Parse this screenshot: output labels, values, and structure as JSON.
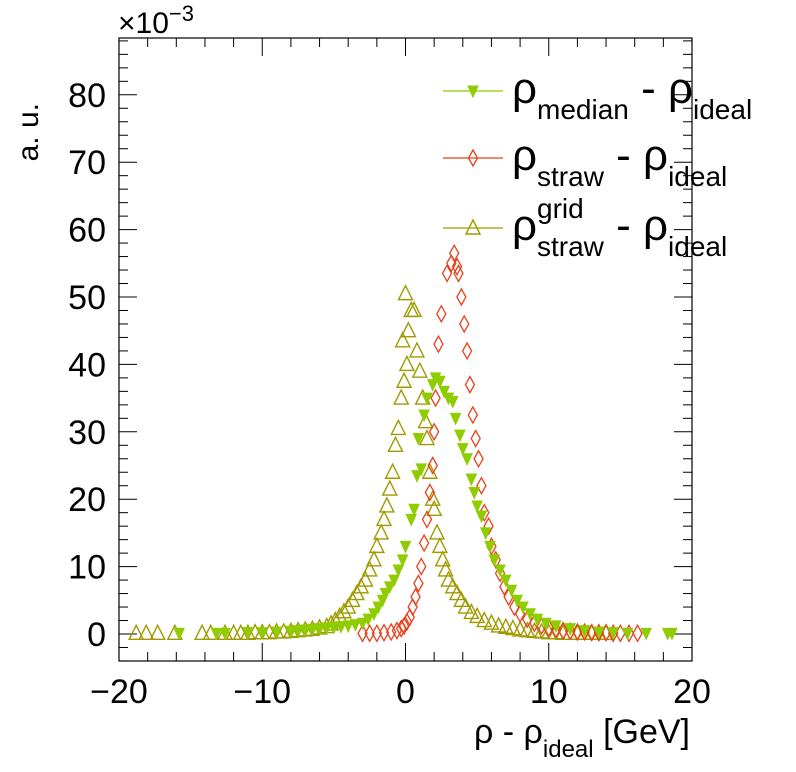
{
  "chart_data": {
    "type": "scatter",
    "title": "",
    "xlabel": {
      "main": "ρ - ρ",
      "sub": "ideal",
      "suffix": " [GeV]"
    },
    "ylabel": "a. u.",
    "y_multiplier": {
      "prefix": "×10",
      "exponent": "−3"
    },
    "xlim": [
      -20,
      20
    ],
    "ylim": [
      -4,
      89
    ],
    "x_ticks": [
      -20,
      -10,
      0,
      10,
      20
    ],
    "x_tick_labels": [
      "−20",
      "−10",
      "0",
      "10",
      "20"
    ],
    "y_ticks": [
      0,
      10,
      20,
      30,
      40,
      50,
      60,
      70,
      80
    ],
    "y_tick_labels": [
      "0",
      "10",
      "20",
      "30",
      "40",
      "50",
      "60",
      "70",
      "80"
    ],
    "grid": false,
    "legend_position": "top-right",
    "series": [
      {
        "name": "rho_median - rho_ideal",
        "legend": {
          "main": "ρ",
          "sub": "median",
          "sup": "",
          "tail": " - ρ",
          "tailsub": "ideal"
        },
        "marker": "triangle-down-filled",
        "color": "#8fcc00",
        "points": [
          [
            -15.8,
            0.1
          ],
          [
            -13.2,
            0.1
          ],
          [
            -12.6,
            0.1
          ],
          [
            -11,
            0.2
          ],
          [
            -10,
            0.2
          ],
          [
            -9,
            0.3
          ],
          [
            -8,
            0.4
          ],
          [
            -7.5,
            0.5
          ],
          [
            -7,
            0.6
          ],
          [
            -6.5,
            0.7
          ],
          [
            -6,
            0.8
          ],
          [
            -5.5,
            0.9
          ],
          [
            -5,
            1.0
          ],
          [
            -4.5,
            1.1
          ],
          [
            -4,
            1.2
          ],
          [
            -3.5,
            1.4
          ],
          [
            -3,
            1.6
          ],
          [
            -2.6,
            2.2
          ],
          [
            -2.2,
            3.0
          ],
          [
            -1.9,
            4.0
          ],
          [
            -1.6,
            5.0
          ],
          [
            -1.4,
            6.0
          ],
          [
            -1.1,
            7.0
          ],
          [
            -0.8,
            8.0
          ],
          [
            -0.5,
            9.5
          ],
          [
            -0.2,
            11.0
          ],
          [
            0,
            13.0
          ],
          [
            0.4,
            17.0
          ],
          [
            0.6,
            18.5
          ],
          [
            0.8,
            23.5
          ],
          [
            1.1,
            24.5
          ],
          [
            0.9,
            29.0
          ],
          [
            1.3,
            32.5
          ],
          [
            1.5,
            35.0
          ],
          [
            1.9,
            37.0
          ],
          [
            2.1,
            38.0
          ],
          [
            2.4,
            37.5
          ],
          [
            2.7,
            36.0
          ],
          [
            3.0,
            35.0
          ],
          [
            3.3,
            34.5
          ],
          [
            3.5,
            32.0
          ],
          [
            3.8,
            29.5
          ],
          [
            4.0,
            27.5
          ],
          [
            4.3,
            26.0
          ],
          [
            4.6,
            23.0
          ],
          [
            4.8,
            21.0
          ],
          [
            5.0,
            19.0
          ],
          [
            5.3,
            17.5
          ],
          [
            5.6,
            15.0
          ],
          [
            5.9,
            13.0
          ],
          [
            6.2,
            11.0
          ],
          [
            6.6,
            9.5
          ],
          [
            7.0,
            8.0
          ],
          [
            7.4,
            6.5
          ],
          [
            7.8,
            5.0
          ],
          [
            8.2,
            4.0
          ],
          [
            8.7,
            3.0
          ],
          [
            9.2,
            2.2
          ],
          [
            9.8,
            1.6
          ],
          [
            10.5,
            1.2
          ],
          [
            11.5,
            0.8
          ],
          [
            12.5,
            0.5
          ],
          [
            13.5,
            0.3
          ],
          [
            14.5,
            0.2
          ],
          [
            15.5,
            0.1
          ],
          [
            16.8,
            0.1
          ],
          [
            18.3,
            0.1
          ],
          [
            18.6,
            0.1
          ]
        ]
      },
      {
        "name": "rho_straw - rho_ideal",
        "legend": {
          "main": "ρ",
          "sub": "straw",
          "sup": "",
          "tail": " - ρ",
          "tailsub": "ideal"
        },
        "marker": "diamond-open",
        "color": "#e8401a",
        "points": [
          [
            -3,
            0.1
          ],
          [
            -2.5,
            0.1
          ],
          [
            -2,
            0.1
          ],
          [
            -1.5,
            0.2
          ],
          [
            -1,
            0.3
          ],
          [
            -0.6,
            0.5
          ],
          [
            -0.3,
            0.8
          ],
          [
            -0.1,
            1.2
          ],
          [
            0.1,
            1.8
          ],
          [
            0.3,
            2.5
          ],
          [
            0.5,
            4.0
          ],
          [
            0.7,
            5.5
          ],
          [
            0.9,
            7.5
          ],
          [
            1.1,
            10.0
          ],
          [
            1.3,
            13.5
          ],
          [
            1.5,
            17.0
          ],
          [
            1.7,
            21.0
          ],
          [
            1.9,
            25.0
          ],
          [
            2.0,
            30.0
          ],
          [
            2.1,
            35.0
          ],
          [
            2.3,
            43.0
          ],
          [
            2.5,
            47.5
          ],
          [
            2.9,
            53.5
          ],
          [
            3.2,
            55.0
          ],
          [
            3.4,
            56.5
          ],
          [
            3.6,
            54.5
          ],
          [
            3.7,
            53.5
          ],
          [
            3.9,
            50.0
          ],
          [
            4.1,
            46.0
          ],
          [
            4.3,
            42.0
          ],
          [
            4.5,
            37.0
          ],
          [
            4.7,
            32.5
          ],
          [
            4.9,
            29.0
          ],
          [
            5.1,
            26.0
          ],
          [
            5.3,
            22.0
          ],
          [
            5.5,
            18.0
          ],
          [
            5.8,
            16.0
          ],
          [
            6.0,
            13.0
          ],
          [
            6.3,
            11.0
          ],
          [
            6.6,
            9.0
          ],
          [
            6.9,
            7.0
          ],
          [
            7.2,
            5.5
          ],
          [
            7.6,
            4.0
          ],
          [
            8.0,
            3.0
          ],
          [
            8.5,
            2.2
          ],
          [
            9.0,
            1.6
          ],
          [
            9.5,
            1.2
          ],
          [
            10,
            0.9
          ],
          [
            10.5,
            0.7
          ],
          [
            11,
            0.5
          ],
          [
            11.5,
            0.4
          ],
          [
            12,
            0.3
          ],
          [
            12.5,
            0.3
          ],
          [
            13,
            0.2
          ],
          [
            13.5,
            0.2
          ],
          [
            14,
            0.2
          ],
          [
            14.5,
            0.1
          ],
          [
            15,
            0.1
          ],
          [
            15.6,
            0.1
          ],
          [
            16.2,
            0.1
          ]
        ]
      },
      {
        "name": "rho_straw^grid - rho_ideal",
        "legend": {
          "main": "ρ",
          "sub": "straw",
          "sup": "grid",
          "tail": " - ρ",
          "tailsub": "ideal"
        },
        "marker": "triangle-up-open",
        "color": "#a09a00",
        "points": [
          [
            -18.8,
            0.1
          ],
          [
            -18.1,
            0.1
          ],
          [
            -17.3,
            0.1
          ],
          [
            -16.1,
            0.1
          ],
          [
            -14.2,
            0.1
          ],
          [
            -13.6,
            0.1
          ],
          [
            -12.6,
            0.1
          ],
          [
            -12,
            0.1
          ],
          [
            -11.5,
            0.1
          ],
          [
            -11,
            0.1
          ],
          [
            -10.5,
            0.2
          ],
          [
            -10,
            0.2
          ],
          [
            -9.5,
            0.2
          ],
          [
            -9,
            0.3
          ],
          [
            -8.5,
            0.3
          ],
          [
            -8,
            0.4
          ],
          [
            -7.5,
            0.5
          ],
          [
            -7,
            0.6
          ],
          [
            -6.5,
            0.7
          ],
          [
            -6,
            0.9
          ],
          [
            -5.5,
            1.1
          ],
          [
            -5.2,
            1.5
          ],
          [
            -4.9,
            2.0
          ],
          [
            -4.6,
            2.6
          ],
          [
            -4.3,
            3.3
          ],
          [
            -4.0,
            4.0
          ],
          [
            -3.7,
            5.0
          ],
          [
            -3.4,
            6.0
          ],
          [
            -3.1,
            7.0
          ],
          [
            -2.8,
            8.0
          ],
          [
            -2.5,
            9.5
          ],
          [
            -2.2,
            11.0
          ],
          [
            -2.0,
            13.0
          ],
          [
            -1.7,
            15.0
          ],
          [
            -1.5,
            17.0
          ],
          [
            -1.3,
            19.0
          ],
          [
            -1.1,
            21.5
          ],
          [
            -0.9,
            24.0
          ],
          [
            -0.7,
            28.0
          ],
          [
            -0.5,
            30.5
          ],
          [
            -0.3,
            35.0
          ],
          [
            -0.1,
            37.5
          ],
          [
            0.1,
            40.0
          ],
          [
            -0.2,
            43.5
          ],
          [
            0.2,
            45.0
          ],
          [
            0.0,
            50.5
          ],
          [
            0.4,
            48.0
          ],
          [
            0.6,
            48.0
          ],
          [
            0.8,
            42.0
          ],
          [
            1.0,
            39.0
          ],
          [
            1.2,
            35.0
          ],
          [
            1.4,
            31.5
          ],
          [
            1.5,
            29.0
          ],
          [
            1.7,
            24.0
          ],
          [
            1.9,
            20.0
          ],
          [
            2.0,
            18.5
          ],
          [
            2.2,
            15.0
          ],
          [
            2.4,
            13.0
          ],
          [
            2.6,
            11.0
          ],
          [
            2.8,
            9.5
          ],
          [
            3.0,
            8.0
          ],
          [
            3.3,
            7.0
          ],
          [
            3.6,
            6.0
          ],
          [
            3.9,
            5.0
          ],
          [
            4.2,
            4.0
          ],
          [
            4.6,
            3.2
          ],
          [
            5.0,
            2.6
          ],
          [
            5.5,
            2.0
          ],
          [
            6.0,
            1.6
          ],
          [
            6.5,
            1.2
          ],
          [
            7.0,
            1.0
          ],
          [
            7.5,
            0.8
          ],
          [
            8.0,
            0.6
          ],
          [
            8.5,
            0.5
          ],
          [
            9.0,
            0.4
          ],
          [
            9.5,
            0.3
          ],
          [
            10.0,
            0.2
          ],
          [
            10.5,
            0.2
          ],
          [
            11,
            0.1
          ],
          [
            11.5,
            0.1
          ],
          [
            12,
            0.1
          ],
          [
            12.5,
            0.1
          ],
          [
            13,
            0.1
          ],
          [
            13.5,
            0.1
          ],
          [
            14,
            0.1
          ]
        ]
      }
    ]
  }
}
